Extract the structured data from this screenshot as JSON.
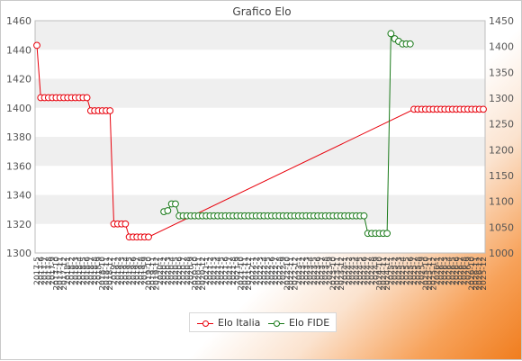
{
  "chart_data": {
    "type": "line",
    "title": "Grafico Elo",
    "y_left_lim": [
      1300,
      1460
    ],
    "y_left_ticks": [
      1300,
      1320,
      1340,
      1360,
      1380,
      1400,
      1420,
      1440,
      1460
    ],
    "y_right_lim": [
      1000,
      1450
    ],
    "y_right_ticks": [
      1000,
      1050,
      1100,
      1150,
      1200,
      1250,
      1300,
      1350,
      1400,
      1450
    ],
    "grid": "horizontal bands",
    "legend_position": "bottom",
    "x_label_first": "2017-5",
    "x_label_last": "2025-12",
    "series": [
      {
        "name": "Elo Italia",
        "color": "#e8000b",
        "axis": "left",
        "values": [
          1443,
          1407,
          1407,
          1407,
          1407,
          1407,
          1407,
          1407,
          1407,
          1407,
          1407,
          1407,
          1407,
          1407,
          1398,
          1398,
          1398,
          1398,
          1398,
          1398,
          1320,
          1320,
          1320,
          1320,
          1311,
          1311,
          1311,
          1311,
          1311,
          1311,
          null,
          null,
          null,
          null,
          null,
          null,
          null,
          null,
          null,
          null,
          null,
          null,
          null,
          null,
          null,
          null,
          null,
          null,
          null,
          null,
          null,
          null,
          null,
          null,
          null,
          null,
          null,
          null,
          null,
          null,
          null,
          null,
          null,
          null,
          null,
          null,
          null,
          null,
          null,
          null,
          null,
          null,
          null,
          null,
          null,
          null,
          null,
          null,
          null,
          null,
          null,
          null,
          null,
          null,
          null,
          null,
          null,
          null,
          null,
          null,
          null,
          null,
          null,
          null,
          null,
          null,
          null,
          null,
          1399,
          1399,
          1399,
          1399,
          1399,
          1399,
          1399,
          1399,
          1399,
          1399,
          1399,
          1399,
          1399,
          1399,
          1399,
          1399,
          1399,
          1399,
          1399
        ]
      },
      {
        "name": "Elo FIDE",
        "color": "#1a7a1a",
        "axis": "right",
        "values": [
          null,
          null,
          null,
          null,
          null,
          null,
          null,
          null,
          null,
          null,
          null,
          null,
          null,
          null,
          null,
          null,
          null,
          null,
          null,
          null,
          null,
          null,
          null,
          null,
          null,
          null,
          null,
          null,
          null,
          null,
          null,
          null,
          null,
          1080,
          1082,
          1095,
          1095,
          1072,
          1072,
          1072,
          1072,
          1072,
          1072,
          1072,
          1072,
          1072,
          1072,
          1072,
          1072,
          1072,
          1072,
          1072,
          1072,
          1072,
          1072,
          1072,
          1072,
          1072,
          1072,
          1072,
          1072,
          1072,
          1072,
          1072,
          1072,
          1072,
          1072,
          1072,
          1072,
          1072,
          1072,
          1072,
          1072,
          1072,
          1072,
          1072,
          1072,
          1072,
          1072,
          1072,
          1072,
          1072,
          1072,
          1072,
          1072,
          1072,
          1038,
          1038,
          1038,
          1038,
          1038,
          1038,
          1425,
          1415,
          1410,
          1405,
          1405,
          1405,
          null,
          null,
          null,
          null,
          null,
          null,
          null,
          null,
          null,
          null,
          null,
          null,
          null,
          null,
          null,
          null,
          null,
          null,
          null
        ]
      }
    ]
  }
}
